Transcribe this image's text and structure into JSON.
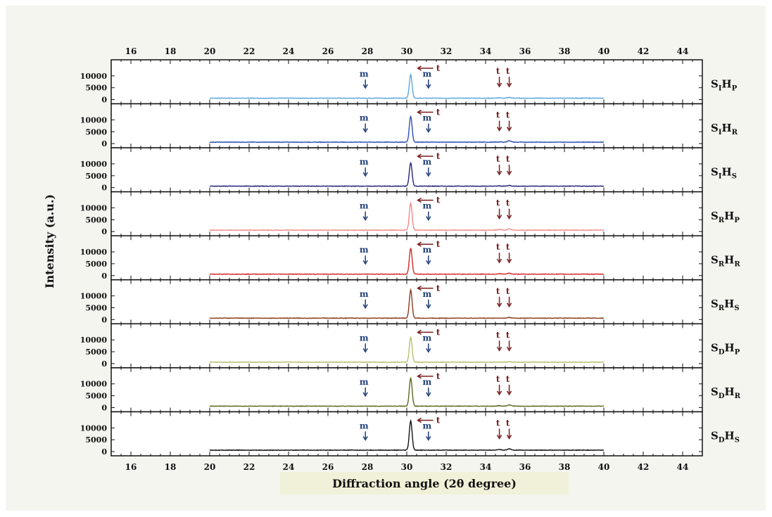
{
  "chart_data": {
    "type": "line",
    "ylabel": "Intensity (a.u.)",
    "xlabel": "Diffraction angle (2θ degree)",
    "xlim": [
      15,
      45
    ],
    "x_tick_labels": [
      "16",
      "18",
      "20",
      "22",
      "24",
      "26",
      "28",
      "30",
      "32",
      "34",
      "36",
      "38",
      "40",
      "42",
      "44"
    ],
    "ylim": [
      0,
      15000
    ],
    "y_tick_labels": [
      "10000",
      "5000",
      "0"
    ],
    "x_range_data": [
      20,
      40
    ],
    "annotations": {
      "m_label": "m",
      "t_label": "t",
      "m_positions": [
        27.9,
        31.1
      ],
      "t_main": 30.2,
      "t_small": [
        34.7,
        35.2
      ]
    },
    "series": [
      {
        "name_main": "S",
        "name_sub1": "I",
        "name_mid": "H",
        "name_sub2": "P",
        "color": "#5aa8e0",
        "peaks": [
          {
            "x": 30.2,
            "y": 10500
          },
          {
            "x": 34.7,
            "y": 700
          },
          {
            "x": 35.2,
            "y": 900
          }
        ]
      },
      {
        "name_main": "S",
        "name_sub1": "I",
        "name_mid": "H",
        "name_sub2": "R",
        "color": "#2e4fb3",
        "peaks": [
          {
            "x": 30.2,
            "y": 11500
          },
          {
            "x": 34.7,
            "y": 700
          },
          {
            "x": 35.2,
            "y": 1200
          }
        ]
      },
      {
        "name_main": "S",
        "name_sub1": "I",
        "name_mid": "H",
        "name_sub2": "S",
        "color": "#23237a",
        "peaks": [
          {
            "x": 30.2,
            "y": 10500
          },
          {
            "x": 34.7,
            "y": 700
          },
          {
            "x": 35.2,
            "y": 900
          }
        ]
      },
      {
        "name_main": "S",
        "name_sub1": "R",
        "name_mid": "H",
        "name_sub2": "P",
        "color": "#f08a8a",
        "peaks": [
          {
            "x": 30.2,
            "y": 12000
          },
          {
            "x": 34.7,
            "y": 900
          },
          {
            "x": 35.2,
            "y": 1100
          }
        ]
      },
      {
        "name_main": "S",
        "name_sub1": "R",
        "name_mid": "H",
        "name_sub2": "R",
        "color": "#d42a2a",
        "peaks": [
          {
            "x": 30.2,
            "y": 11500
          },
          {
            "x": 34.7,
            "y": 800
          },
          {
            "x": 35.2,
            "y": 1000
          }
        ]
      },
      {
        "name_main": "S",
        "name_sub1": "R",
        "name_mid": "H",
        "name_sub2": "S",
        "color": "#8a3b1f",
        "peaks": [
          {
            "x": 30.2,
            "y": 12500
          },
          {
            "x": 34.7,
            "y": 600
          },
          {
            "x": 35.2,
            "y": 900
          }
        ]
      },
      {
        "name_main": "S",
        "name_sub1": "D",
        "name_mid": "H",
        "name_sub2": "P",
        "color": "#b8bf6a",
        "peaks": [
          {
            "x": 30.2,
            "y": 11000
          },
          {
            "x": 34.7,
            "y": 600
          },
          {
            "x": 35.2,
            "y": 800
          }
        ]
      },
      {
        "name_main": "S",
        "name_sub1": "D",
        "name_mid": "H",
        "name_sub2": "R",
        "color": "#5c6a1e",
        "peaks": [
          {
            "x": 30.2,
            "y": 12500
          },
          {
            "x": 34.7,
            "y": 800
          },
          {
            "x": 35.2,
            "y": 1100
          }
        ]
      },
      {
        "name_main": "S",
        "name_sub1": "D",
        "name_mid": "H",
        "name_sub2": "S",
        "color": "#111111",
        "peaks": [
          {
            "x": 30.2,
            "y": 13000
          },
          {
            "x": 34.7,
            "y": 900
          },
          {
            "x": 35.2,
            "y": 1200
          }
        ]
      }
    ],
    "grid": false
  }
}
